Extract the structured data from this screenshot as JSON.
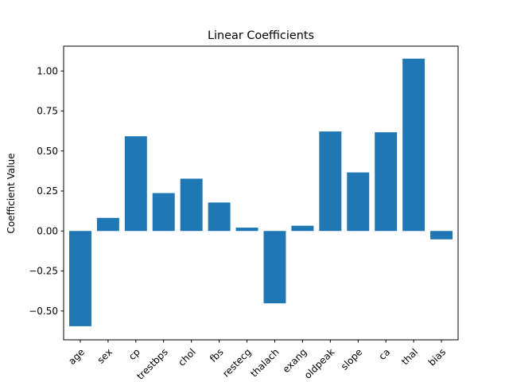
{
  "chart_data": {
    "type": "bar",
    "title": "Linear Coefficients",
    "xlabel": "",
    "ylabel": "Coefficient Value",
    "categories": [
      "age",
      "sex",
      "cp",
      "trestbps",
      "chol",
      "fbs",
      "restecg",
      "thalach",
      "exang",
      "oldpeak",
      "slope",
      "ca",
      "thal",
      "bias"
    ],
    "values": [
      -0.595,
      0.082,
      0.592,
      0.237,
      0.327,
      0.178,
      0.021,
      -0.452,
      0.033,
      0.622,
      0.366,
      0.617,
      1.077,
      -0.052
    ],
    "ylim": [
      -0.68,
      1.155
    ],
    "yticks": [
      -0.5,
      -0.25,
      0.0,
      0.25,
      0.5,
      0.75,
      1.0
    ],
    "ytick_labels": [
      "−0.50",
      "−0.25",
      "0.00",
      "0.25",
      "0.50",
      "0.75",
      "1.00"
    ],
    "xtick_rotation": 45,
    "grid": false,
    "legend": "none",
    "bar_color": "#1f77b4"
  }
}
